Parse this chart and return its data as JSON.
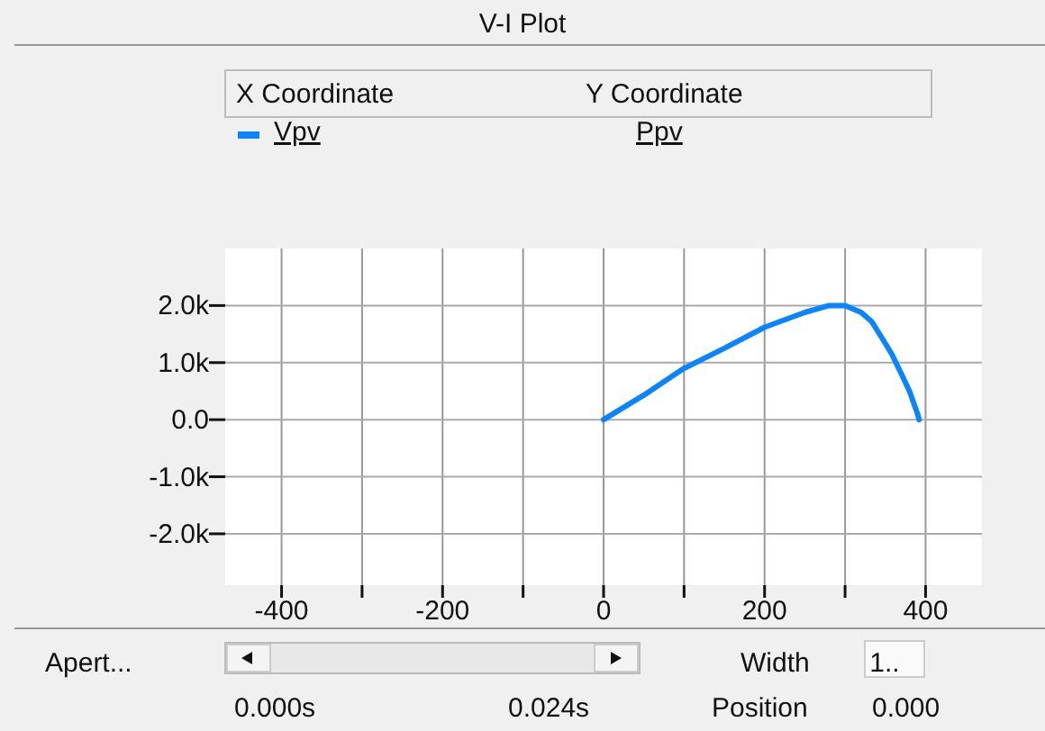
{
  "chart_data": {
    "type": "line",
    "title": "V-I Plot",
    "ylabel": "Ppv",
    "legend": "top",
    "grid": true,
    "marker": "none",
    "line_style": "solid",
    "xlim": [
      -470,
      470
    ],
    "ylim": [
      -2900,
      3000
    ],
    "xticks": [
      {
        "value": -400,
        "label": "-400"
      },
      {
        "value": -300,
        "label": null
      },
      {
        "value": -200,
        "label": "-200"
      },
      {
        "value": -100,
        "label": null
      },
      {
        "value": 0,
        "label": "0"
      },
      {
        "value": 100,
        "label": null
      },
      {
        "value": 200,
        "label": "200"
      },
      {
        "value": 300,
        "label": null
      },
      {
        "value": 400,
        "label": "400"
      }
    ],
    "yticks": [
      {
        "value": -2000,
        "label": "-2.0k"
      },
      {
        "value": -1000,
        "label": "-1.0k"
      },
      {
        "value": 0,
        "label": "0.0"
      },
      {
        "value": 1000,
        "label": "1.0k"
      },
      {
        "value": 2000,
        "label": "2.0k"
      }
    ],
    "annotations": [
      "X Coordinate",
      "Y Coordinate",
      "Apert...",
      "Width",
      "1..",
      "0.000s",
      "0.024s",
      "Position",
      "0.000"
    ],
    "series": [
      {
        "name": "Vpv",
        "color": "#0a84ff",
        "x": [
          0,
          50,
          100,
          150,
          200,
          250,
          280,
          300,
          320,
          333,
          345,
          358,
          370,
          380,
          390,
          392
        ],
        "values": [
          0,
          430,
          900,
          1250,
          1620,
          1880,
          2000,
          2000,
          1880,
          1720,
          1450,
          1150,
          800,
          500,
          100,
          0
        ]
      }
    ]
  }
}
